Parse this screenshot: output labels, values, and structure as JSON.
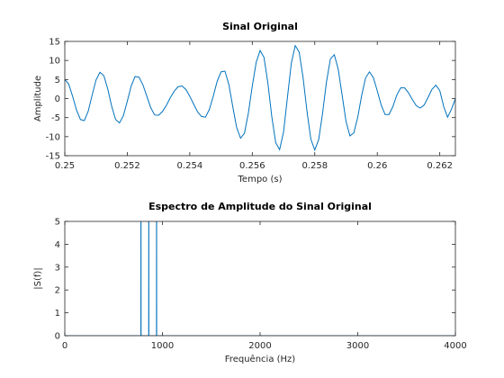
{
  "chart_data": [
    {
      "type": "line",
      "title": "Sinal Original",
      "xlabel": "Tempo (s)",
      "ylabel": "Amplitude",
      "x": [
        0.25,
        0.250125,
        0.25025,
        0.250375,
        0.2505,
        0.250625,
        0.25075,
        0.250875,
        0.251,
        0.251125,
        0.25125,
        0.251375,
        0.2515,
        0.251625,
        0.25175,
        0.251875,
        0.252,
        0.252125,
        0.25225,
        0.252375,
        0.2525,
        0.252625,
        0.25275,
        0.252875,
        0.253,
        0.253125,
        0.25325,
        0.253375,
        0.2535,
        0.253625,
        0.25375,
        0.253875,
        0.254,
        0.254125,
        0.25425,
        0.254375,
        0.2545,
        0.254625,
        0.25475,
        0.254875,
        0.255,
        0.255125,
        0.25525,
        0.255375,
        0.2555,
        0.255625,
        0.25575,
        0.255875,
        0.256,
        0.256125,
        0.25625,
        0.256375,
        0.2565,
        0.256625,
        0.25675,
        0.256875,
        0.257,
        0.257125,
        0.25725,
        0.257375,
        0.2575,
        0.257625,
        0.25775,
        0.257875,
        0.258,
        0.258125,
        0.25825,
        0.258375,
        0.2585,
        0.258625,
        0.25875,
        0.258875,
        0.259,
        0.259125,
        0.25925,
        0.259375,
        0.2595,
        0.259625,
        0.25975,
        0.259875,
        0.26,
        0.260125,
        0.26025,
        0.260375,
        0.2605,
        0.260625,
        0.26075,
        0.260875,
        0.261,
        0.261125,
        0.26125,
        0.261375,
        0.2615,
        0.261625,
        0.26175,
        0.261875,
        0.262,
        0.262125,
        0.26225,
        0.262375,
        0.2625
      ],
      "series": [
        {
          "color": "#0072bd",
          "values": [
            5,
            3.8,
            0.6,
            -3.0,
            -5.5,
            -5.8,
            -3.3,
            0.9,
            4.9,
            6.9,
            6.0,
            2.5,
            -2.0,
            -5.5,
            -6.4,
            -4.5,
            -0.7,
            3.3,
            5.8,
            5.6,
            3.6,
            0.6,
            -2.4,
            -4.3,
            -4.4,
            -3.4,
            -1.8,
            0.2,
            1.9,
            3.1,
            3.3,
            2.4,
            0.6,
            -1.5,
            -3.5,
            -4.7,
            -4.9,
            -2.9,
            0.6,
            4.5,
            7.0,
            7.2,
            3.7,
            -2.1,
            -7.6,
            -10.4,
            -9.1,
            -3.8,
            3.3,
            9.5,
            12.6,
            10.8,
            4.0,
            -4.8,
            -11.6,
            -13.4,
            -8.8,
            0.3,
            9.3,
            13.9,
            12.2,
            5.5,
            -3.3,
            -10.7,
            -13.5,
            -10.8,
            -3.8,
            4.4,
            10.4,
            11.5,
            7.7,
            0.9,
            -6.0,
            -9.8,
            -9.0,
            -4.9,
            0.8,
            5.4,
            7.0,
            5.5,
            2.0,
            -1.7,
            -4.2,
            -4.2,
            -2.1,
            0.9,
            2.8,
            2.8,
            1.5,
            -0.3,
            -1.9,
            -2.5,
            -1.7,
            0.3,
            2.4,
            3.5,
            2.1,
            -2.1,
            -4.9,
            -2.8,
            0
          ]
        }
      ],
      "xlim": [
        0.25,
        0.2625
      ],
      "xticks": [
        0.25,
        0.252,
        0.254,
        0.256,
        0.258,
        0.26,
        0.262
      ],
      "ylim": [
        -15,
        15
      ],
      "yticks": [
        -15,
        -10,
        -5,
        0,
        5,
        10,
        15
      ]
    },
    {
      "type": "line",
      "title": "Espectro de Amplitude do Sinal Original",
      "xlabel": "Frequência (Hz)",
      "ylabel": "|S(f)|",
      "x": [
        0,
        779,
        780,
        781,
        859,
        860,
        861,
        939,
        940,
        941,
        4000
      ],
      "series": [
        {
          "color": "#0072bd",
          "values": [
            0,
            0,
            10,
            0,
            0,
            10,
            0,
            0,
            10,
            0,
            0
          ]
        }
      ],
      "xlim": [
        0,
        4000
      ],
      "xticks": [
        0,
        1000,
        2000,
        3000,
        4000
      ],
      "ylim": [
        0,
        5
      ],
      "yticks": [
        0,
        1,
        2,
        3,
        4,
        5
      ]
    }
  ]
}
